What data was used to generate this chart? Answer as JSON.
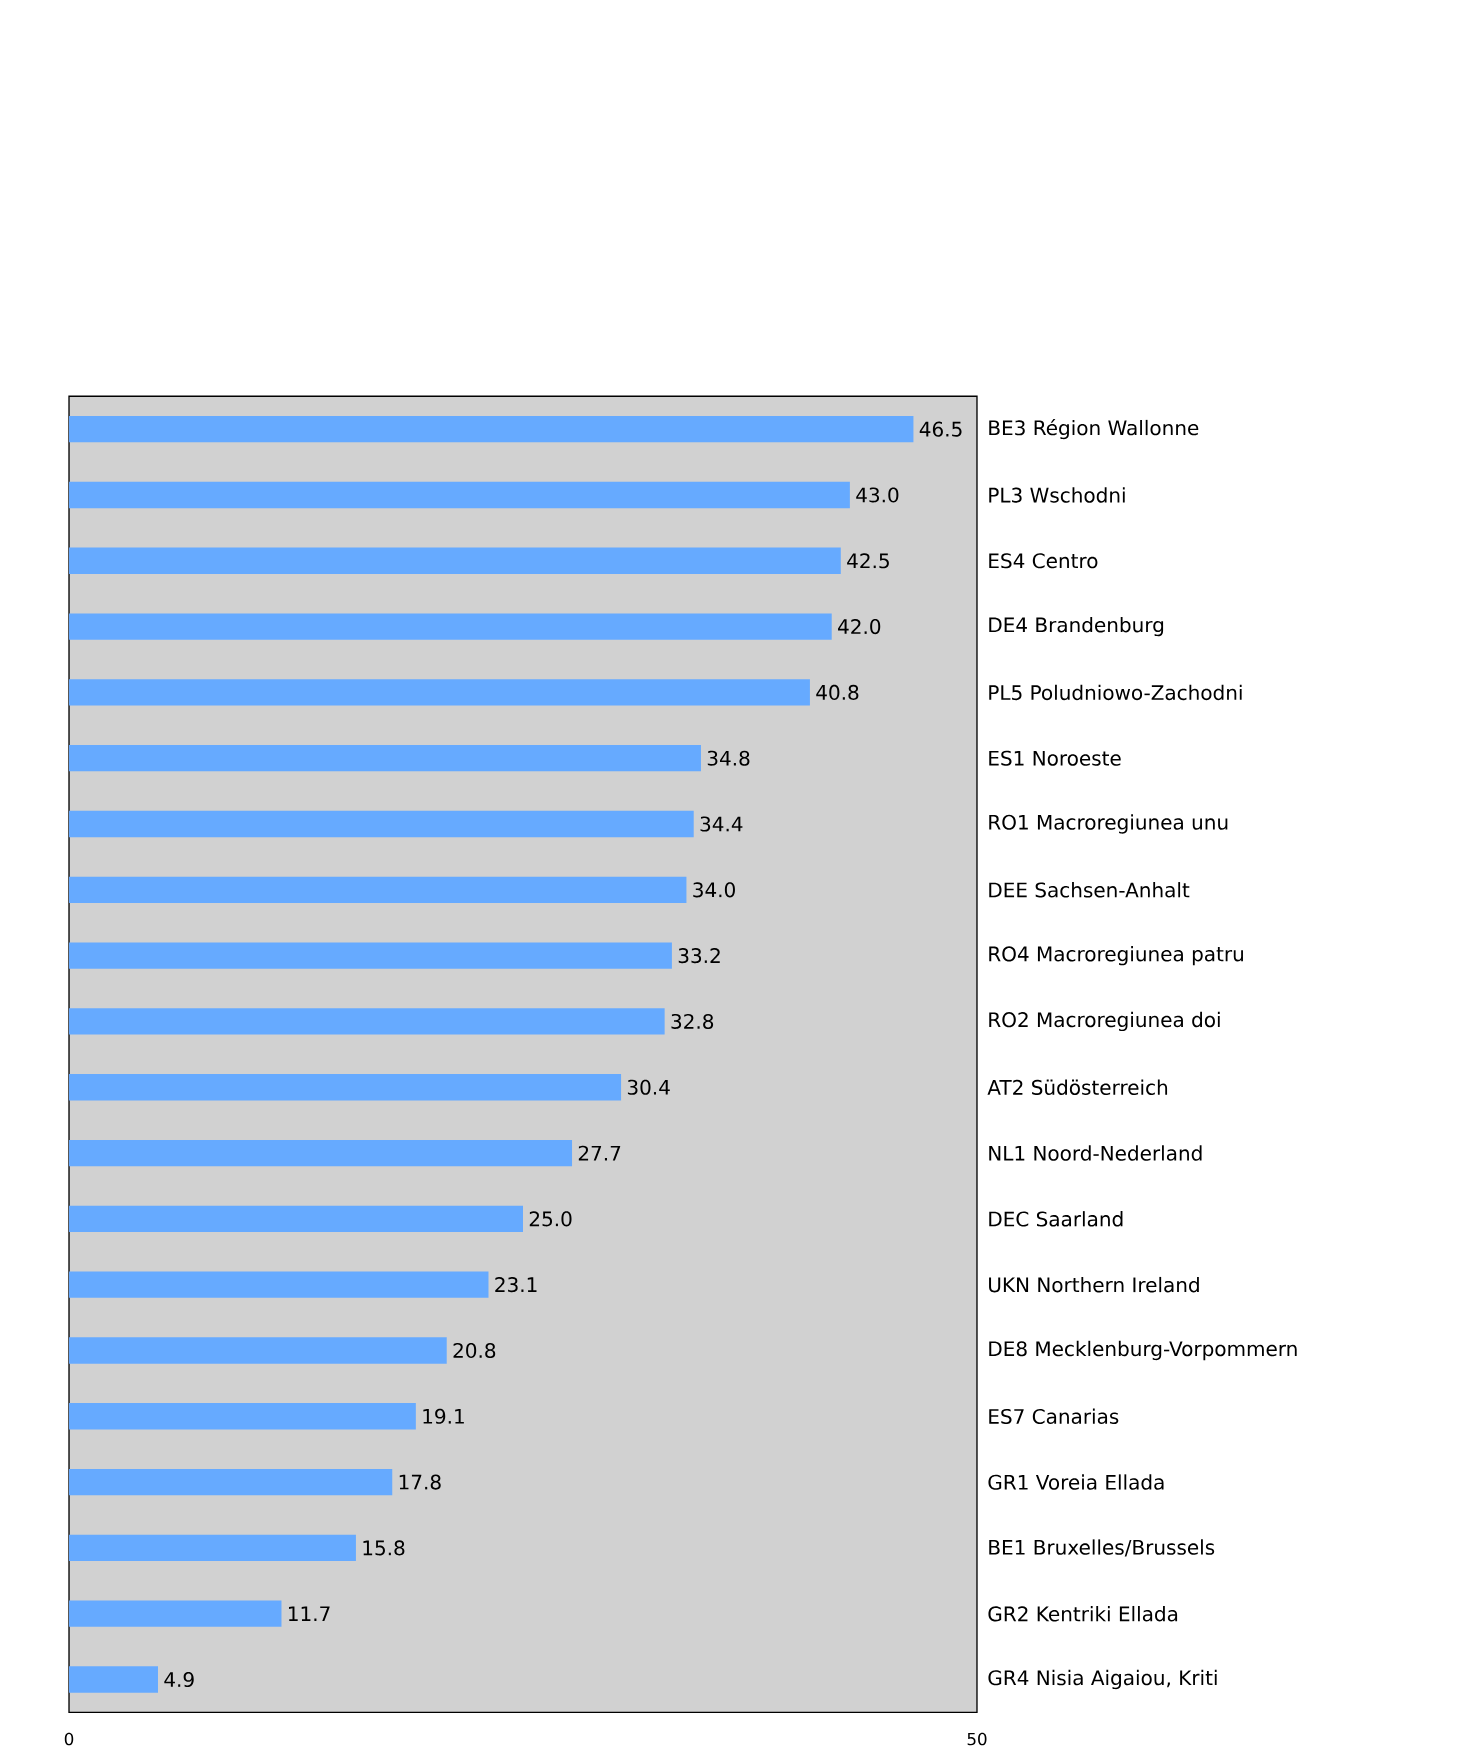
{
  "chart_data": {
    "type": "bar",
    "orientation": "horizontal",
    "categories": [
      "BE3 Région Wallonne",
      "PL3 Wschodni",
      "ES4 Centro",
      "DE4 Brandenburg",
      "PL5 Poludniowo-Zachodni",
      "ES1 Noroeste",
      "RO1 Macroregiunea unu",
      "DEE Sachsen-Anhalt",
      "RO4 Macroregiunea patru",
      "RO2 Macroregiunea doi",
      "AT2 Südösterreich",
      "NL1 Noord-Nederland",
      "DEC Saarland",
      "UKN Northern Ireland",
      "DE8 Mecklenburg-Vorpommern",
      "ES7 Canarias",
      "GR1 Voreia Ellada",
      "BE1 Bruxelles/Brussels",
      "GR2 Kentriki Ellada",
      "GR4 Nisia Aigaiou, Kriti"
    ],
    "values": [
      46.5,
      43.0,
      42.5,
      42.0,
      40.8,
      34.8,
      34.4,
      34.0,
      33.2,
      32.8,
      30.4,
      27.7,
      25.0,
      23.1,
      20.8,
      19.1,
      17.8,
      15.8,
      11.7,
      4.9
    ],
    "value_labels": [
      "46.5",
      "43.0",
      "42.5",
      "42.0",
      "40.8",
      "34.8",
      "34.4",
      "34.0",
      "33.2",
      "32.8",
      "30.4",
      "27.7",
      "25.0",
      "23.1",
      "20.8",
      "19.1",
      "17.8",
      "15.8",
      "11.7",
      "4.9"
    ],
    "color": "#66aaff",
    "xlim": [
      0,
      50
    ],
    "xticks": [
      0,
      50
    ]
  }
}
